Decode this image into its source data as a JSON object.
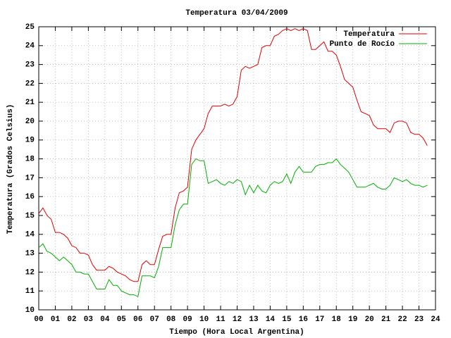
{
  "chart_data": {
    "type": "line",
    "title": "Temperatura 03/04/2009",
    "x_label": "Tiempo (Hora Local Argentina)",
    "y_label": "Temperatura (Grados Celsius)",
    "x": [
      0,
      0.25,
      0.5,
      0.75,
      1,
      1.25,
      1.5,
      1.75,
      2,
      2.25,
      2.5,
      2.75,
      3,
      3.25,
      3.5,
      3.75,
      4,
      4.25,
      4.5,
      4.75,
      5,
      5.25,
      5.5,
      5.75,
      6,
      6.25,
      6.5,
      6.75,
      7,
      7.25,
      7.5,
      7.75,
      8,
      8.25,
      8.5,
      8.75,
      9,
      9.25,
      9.5,
      9.75,
      10,
      10.25,
      10.5,
      10.75,
      11,
      11.25,
      11.5,
      11.75,
      12,
      12.25,
      12.5,
      12.75,
      13,
      13.25,
      13.5,
      13.75,
      14,
      14.25,
      14.5,
      14.75,
      15,
      15.25,
      15.5,
      15.75,
      16,
      16.25,
      16.5,
      16.75,
      17,
      17.25,
      17.5,
      17.75,
      18,
      18.25,
      18.5,
      18.75,
      19,
      19.25,
      19.5,
      19.75,
      20,
      20.25,
      20.5,
      20.75,
      21,
      21.25,
      21.5,
      21.75,
      22,
      22.25,
      22.5,
      22.75,
      23,
      23.25,
      23.5
    ],
    "series": [
      {
        "name": "Temperatura",
        "color": "#e00000",
        "values": [
          15.1,
          15.4,
          15.0,
          14.8,
          14.1,
          14.1,
          14.0,
          13.8,
          13.4,
          13.3,
          13.0,
          13.0,
          12.9,
          12.4,
          12.1,
          12.1,
          12.1,
          12.3,
          12.2,
          12.0,
          11.9,
          11.8,
          11.6,
          11.5,
          11.5,
          12.4,
          12.6,
          12.4,
          12.4,
          13.2,
          13.9,
          14.0,
          14.0,
          15.4,
          16.2,
          16.3,
          16.5,
          18.5,
          19.0,
          19.3,
          19.6,
          20.4,
          20.8,
          20.8,
          20.8,
          20.9,
          20.8,
          20.9,
          21.3,
          22.7,
          22.9,
          22.8,
          22.9,
          23.0,
          23.9,
          24.0,
          24.0,
          24.5,
          24.6,
          24.8,
          24.9,
          24.8,
          24.9,
          24.8,
          24.9,
          24.8,
          23.8,
          23.8,
          24.0,
          24.2,
          23.7,
          23.7,
          23.5,
          22.9,
          22.2,
          22.0,
          21.8,
          21.1,
          20.5,
          20.4,
          20.3,
          19.8,
          19.6,
          19.6,
          19.6,
          19.4,
          19.9,
          20.0,
          20.0,
          19.9,
          19.4,
          19.3,
          19.3,
          19.1,
          18.7
        ]
      },
      {
        "name": "Punto de Rocío",
        "color": "#00b000",
        "values": [
          13.3,
          13.5,
          13.1,
          13.0,
          12.8,
          12.6,
          12.8,
          12.6,
          12.4,
          12.0,
          12.0,
          11.9,
          11.9,
          11.5,
          11.1,
          11.1,
          11.1,
          11.6,
          11.3,
          11.3,
          11.0,
          10.9,
          10.8,
          10.8,
          10.7,
          11.8,
          11.8,
          11.8,
          11.7,
          12.3,
          13.3,
          13.3,
          13.3,
          14.5,
          15.3,
          15.6,
          15.6,
          17.7,
          18.0,
          17.9,
          17.9,
          16.7,
          16.8,
          16.9,
          16.7,
          16.6,
          16.8,
          16.7,
          16.9,
          16.8,
          16.1,
          16.6,
          16.2,
          16.6,
          16.3,
          16.2,
          16.6,
          16.8,
          16.7,
          16.8,
          17.2,
          16.7,
          17.3,
          17.6,
          17.3,
          17.3,
          17.3,
          17.6,
          17.7,
          17.7,
          17.8,
          17.8,
          18.0,
          17.7,
          17.5,
          17.3,
          16.9,
          16.5,
          16.5,
          16.5,
          16.6,
          16.7,
          16.5,
          16.4,
          16.4,
          16.6,
          17.0,
          16.9,
          16.8,
          16.9,
          16.7,
          16.6,
          16.6,
          16.5,
          16.6
        ]
      }
    ],
    "xlim": [
      0,
      24
    ],
    "xticks": [
      {
        "value": 0,
        "label": "00"
      },
      {
        "value": 1,
        "label": "01"
      },
      {
        "value": 2,
        "label": "02"
      },
      {
        "value": 3,
        "label": "03"
      },
      {
        "value": 4,
        "label": "04"
      },
      {
        "value": 5,
        "label": "05"
      },
      {
        "value": 6,
        "label": "06"
      },
      {
        "value": 7,
        "label": "07"
      },
      {
        "value": 8,
        "label": "08"
      },
      {
        "value": 9,
        "label": "09"
      },
      10,
      11,
      12,
      13,
      14,
      15,
      16,
      17,
      18,
      19,
      20,
      21,
      22,
      23,
      24
    ],
    "ylim": [
      10,
      25
    ],
    "yticks": [
      10,
      11,
      12,
      13,
      14,
      15,
      16,
      17,
      18,
      19,
      20,
      21,
      22,
      23,
      24,
      25
    ],
    "grid": true,
    "legend": "top-right"
  }
}
